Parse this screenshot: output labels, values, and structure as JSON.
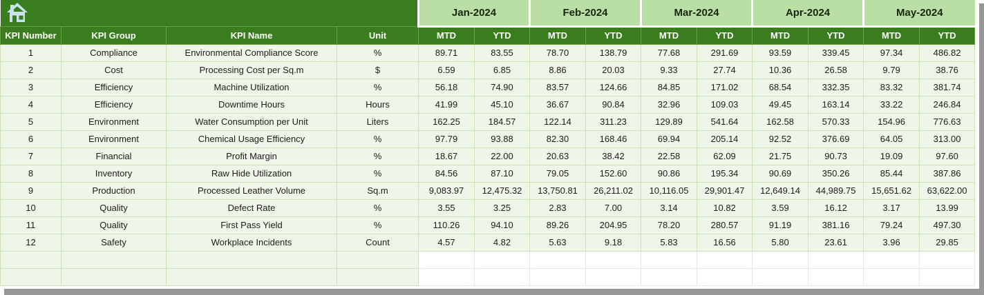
{
  "colors": {
    "header_dark_green": "#3A7D1E",
    "month_band_green": "#B9DFA4",
    "row_light_green": "#EFF6E9",
    "grid_green": "#CBE3B8",
    "header_text": "#FFFFFF",
    "shadow_gray": "#979797",
    "home_icon_blue": "#C9E2EE"
  },
  "table": {
    "left_headers": [
      "KPI Number",
      "KPI Group",
      "KPI Name",
      "Unit"
    ],
    "months": [
      "Jan-2024",
      "Feb-2024",
      "Mar-2024",
      "Apr-2024",
      "May-2024"
    ],
    "period_headers": [
      "MTD",
      "YTD"
    ],
    "rows": [
      {
        "kpi_number": "1",
        "kpi_group": "Compliance",
        "kpi_name": "Environmental Compliance Score",
        "unit": "%",
        "values": [
          "89.71",
          "83.55",
          "78.70",
          "138.79",
          "77.68",
          "291.69",
          "93.59",
          "339.45",
          "97.34",
          "486.82"
        ]
      },
      {
        "kpi_number": "2",
        "kpi_group": "Cost",
        "kpi_name": "Processing Cost per Sq.m",
        "unit": "$",
        "values": [
          "6.59",
          "6.85",
          "8.86",
          "20.03",
          "9.33",
          "27.74",
          "10.36",
          "26.58",
          "9.79",
          "38.76"
        ]
      },
      {
        "kpi_number": "3",
        "kpi_group": "Efficiency",
        "kpi_name": "Machine Utilization",
        "unit": "%",
        "values": [
          "56.18",
          "74.90",
          "83.57",
          "124.66",
          "84.85",
          "171.02",
          "68.54",
          "332.35",
          "83.32",
          "381.74"
        ]
      },
      {
        "kpi_number": "4",
        "kpi_group": "Efficiency",
        "kpi_name": "Downtime Hours",
        "unit": "Hours",
        "values": [
          "41.99",
          "45.10",
          "36.67",
          "90.84",
          "32.96",
          "109.03",
          "49.45",
          "163.14",
          "33.22",
          "246.84"
        ]
      },
      {
        "kpi_number": "5",
        "kpi_group": "Environment",
        "kpi_name": "Water Consumption per Unit",
        "unit": "Liters",
        "values": [
          "162.25",
          "184.57",
          "122.14",
          "311.23",
          "129.89",
          "541.64",
          "162.58",
          "570.33",
          "154.96",
          "776.63"
        ]
      },
      {
        "kpi_number": "6",
        "kpi_group": "Environment",
        "kpi_name": "Chemical Usage Efficiency",
        "unit": "%",
        "values": [
          "97.79",
          "93.88",
          "82.30",
          "168.46",
          "69.94",
          "205.14",
          "92.52",
          "376.69",
          "64.05",
          "313.00"
        ]
      },
      {
        "kpi_number": "7",
        "kpi_group": "Financial",
        "kpi_name": "Profit Margin",
        "unit": "%",
        "values": [
          "18.67",
          "22.00",
          "20.63",
          "38.42",
          "22.58",
          "62.09",
          "21.75",
          "90.73",
          "19.09",
          "97.60"
        ]
      },
      {
        "kpi_number": "8",
        "kpi_group": "Inventory",
        "kpi_name": "Raw Hide Utilization",
        "unit": "%",
        "values": [
          "84.56",
          "87.10",
          "79.05",
          "152.60",
          "90.86",
          "195.34",
          "90.69",
          "350.26",
          "85.44",
          "387.86"
        ]
      },
      {
        "kpi_number": "9",
        "kpi_group": "Production",
        "kpi_name": "Processed Leather Volume",
        "unit": "Sq.m",
        "values": [
          "9,083.97",
          "12,475.32",
          "13,750.81",
          "26,211.02",
          "10,116.05",
          "29,901.47",
          "12,649.14",
          "44,989.75",
          "15,651.62",
          "63,622.00"
        ]
      },
      {
        "kpi_number": "10",
        "kpi_group": "Quality",
        "kpi_name": "Defect Rate",
        "unit": "%",
        "values": [
          "3.55",
          "3.25",
          "2.83",
          "7.00",
          "3.14",
          "10.82",
          "3.59",
          "16.12",
          "3.17",
          "13.99"
        ]
      },
      {
        "kpi_number": "11",
        "kpi_group": "Quality",
        "kpi_name": "First Pass Yield",
        "unit": "%",
        "values": [
          "110.26",
          "94.10",
          "89.26",
          "204.95",
          "78.20",
          "280.57",
          "91.19",
          "381.16",
          "79.24",
          "497.30"
        ]
      },
      {
        "kpi_number": "12",
        "kpi_group": "Safety",
        "kpi_name": "Workplace Incidents",
        "unit": "Count",
        "values": [
          "4.57",
          "4.82",
          "5.63",
          "9.18",
          "5.83",
          "16.56",
          "5.80",
          "23.61",
          "3.96",
          "29.85"
        ]
      }
    ],
    "empty_row_count": 2
  }
}
